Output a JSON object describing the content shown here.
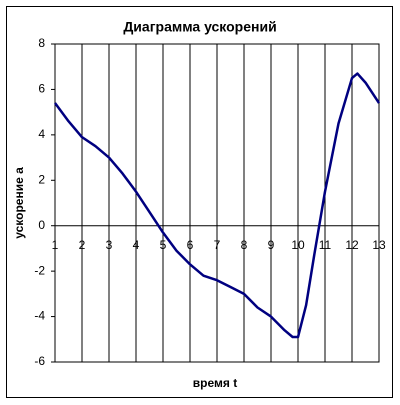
{
  "chart_data": {
    "type": "line",
    "title": "Диаграмма ускорений",
    "x_label": "время t",
    "y_label": "ускорение a",
    "x": [
      1,
      1.5,
      2,
      2.5,
      3,
      3.5,
      4,
      4.5,
      5,
      5.5,
      6,
      6.5,
      7,
      7.5,
      8,
      8.5,
      9,
      9.5,
      9.8,
      10,
      10.3,
      10.6,
      11,
      11.5,
      12,
      12.2,
      12.5,
      13
    ],
    "values": [
      5.4,
      4.6,
      3.9,
      3.5,
      3.0,
      2.3,
      1.5,
      0.6,
      -0.3,
      -1.1,
      -1.7,
      -2.2,
      -2.4,
      -2.7,
      -3.0,
      -3.6,
      -4.0,
      -4.6,
      -4.9,
      -4.9,
      -3.5,
      -1.3,
      1.5,
      4.5,
      6.5,
      6.7,
      6.3,
      5.4
    ],
    "color": "#000080",
    "xlim": [
      1,
      13
    ],
    "xticks": [
      1,
      2,
      3,
      4,
      5,
      6,
      7,
      8,
      9,
      10,
      11,
      12,
      13
    ],
    "ylim": [
      -6,
      8
    ],
    "yticks": [
      -6,
      -4,
      -2,
      0,
      2,
      4,
      6,
      8
    ],
    "grid": "vertical"
  }
}
